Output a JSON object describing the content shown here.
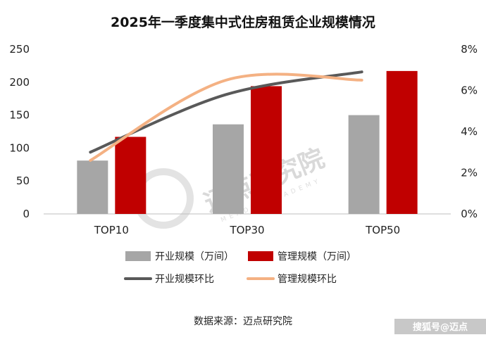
{
  "chart_data": {
    "type": "bar",
    "title": "2025年一季度集中式住房租赁企业规模情况",
    "categories": [
      "TOP10",
      "TOP30",
      "TOP50"
    ],
    "series": [
      {
        "name": "开业规模（万间）",
        "type": "bar",
        "axis": "left",
        "color": "#a6a6a6",
        "values": [
          81,
          136,
          150
        ]
      },
      {
        "name": "管理规模（万间）",
        "type": "bar",
        "axis": "left",
        "color": "#c00000",
        "values": [
          117,
          194,
          217
        ]
      },
      {
        "name": "开业规模环比",
        "type": "line",
        "axis": "right",
        "color": "#595959",
        "values": [
          3.0,
          5.8,
          6.9
        ]
      },
      {
        "name": "管理规模环比",
        "type": "line",
        "axis": "right",
        "color": "#f4b183",
        "values": [
          2.6,
          6.5,
          6.5
        ]
      }
    ],
    "ylim": [
      0,
      250
    ],
    "yticks": [
      "0",
      "50",
      "100",
      "150",
      "200",
      "250"
    ],
    "y2lim": [
      0,
      8
    ],
    "y2ticks": [
      "0%",
      "2%",
      "4%",
      "6%",
      "8%"
    ],
    "grid": false,
    "legend": "bottom"
  },
  "source": "数据来源：迈点研究院",
  "watermark": {
    "text": "迈点研究院",
    "subtext": "MEADIN ACADEMY"
  },
  "corner_mark": "搜狐号@迈点"
}
